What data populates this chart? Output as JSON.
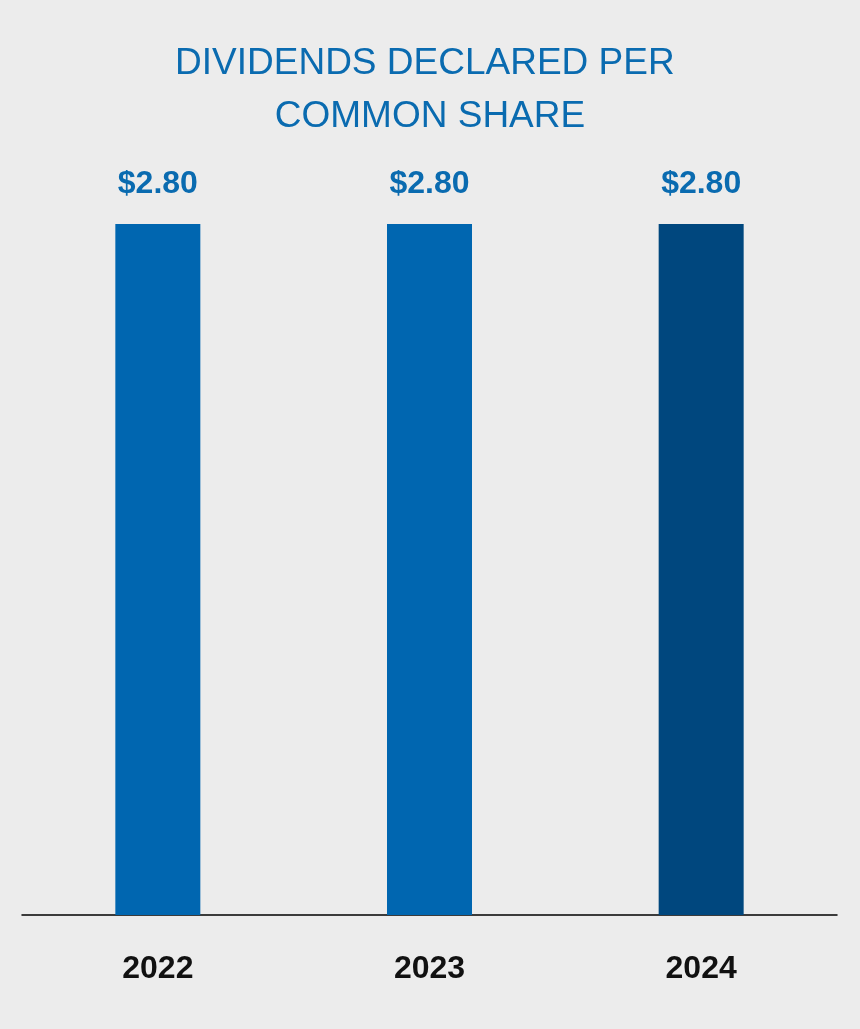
{
  "chart_data": {
    "type": "bar",
    "title": "DIVIDENDS DECLARED PER COMMON SHARE",
    "categories": [
      "2022",
      "2023",
      "2024"
    ],
    "values": [
      2.8,
      2.8,
      2.8
    ],
    "colors": [
      "#0066b0",
      "#0066b0",
      "#00477e"
    ],
    "value_labels": [
      "$2.80",
      "$2.80",
      "$2.80"
    ]
  }
}
